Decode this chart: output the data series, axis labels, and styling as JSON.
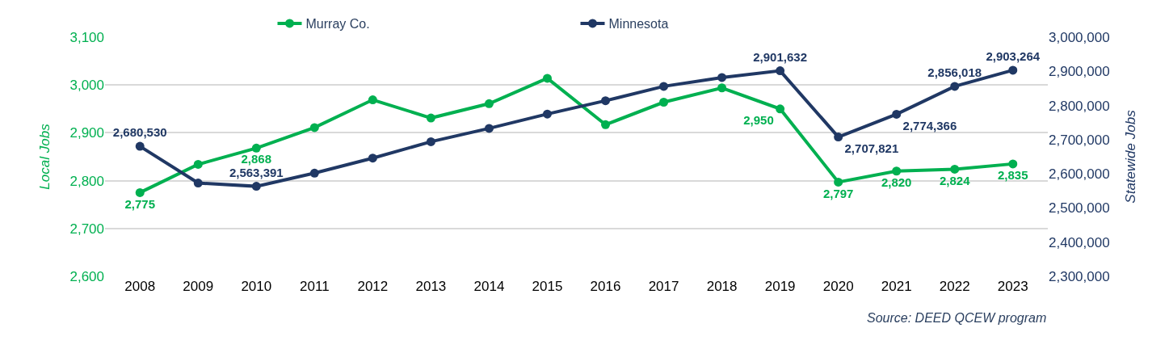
{
  "chart_data": {
    "type": "line",
    "categories": [
      "2008",
      "2009",
      "2010",
      "2011",
      "2012",
      "2013",
      "2014",
      "2015",
      "2016",
      "2017",
      "2018",
      "2019",
      "2020",
      "2021",
      "2022",
      "2023"
    ],
    "series": [
      {
        "name": "Murray Co.",
        "color": "#00b050",
        "values": [
          2775,
          2834,
          2868,
          2911,
          2969,
          2931,
          2961,
          3014,
          2917,
          2964,
          2994,
          2950,
          2797,
          2820,
          2824,
          2835
        ],
        "value_labels": [
          "2,775",
          null,
          "2,868",
          null,
          null,
          null,
          null,
          null,
          null,
          null,
          null,
          "2,950",
          "2,797",
          "2,820",
          "2,824",
          "2,835"
        ]
      },
      {
        "name": "Minnesota",
        "color": "#203864",
        "axis": "y2",
        "values": [
          2680530,
          2573000,
          2563391,
          2602000,
          2646000,
          2694000,
          2733000,
          2775000,
          2814000,
          2856000,
          2882000,
          2901632,
          2707821,
          2774366,
          2856018,
          2903264
        ],
        "value_labels": [
          "2,680,530",
          null,
          "2,563,391",
          null,
          null,
          null,
          null,
          null,
          null,
          null,
          null,
          "2,901,632",
          "2,707,821",
          "2,774,366",
          "2,856,018",
          "2,903,264"
        ]
      }
    ],
    "ylabel": "Local Jobs",
    "y2label": "Statewide Jobs",
    "ylim": [
      2600,
      3100
    ],
    "yticks": [
      {
        "value": 2600,
        "label": "2,600"
      },
      {
        "value": 2700,
        "label": "2,700"
      },
      {
        "value": 2800,
        "label": "2,800"
      },
      {
        "value": 2900,
        "label": "2,900"
      },
      {
        "value": 3000,
        "label": "3,000"
      },
      {
        "value": 3100,
        "label": "3,100"
      }
    ],
    "y2lim": [
      2300000,
      3000000
    ],
    "y2ticks": [
      {
        "value": 2300000,
        "label": "2,300,000"
      },
      {
        "value": 2400000,
        "label": "2,400,000"
      },
      {
        "value": 2500000,
        "label": "2,500,000"
      },
      {
        "value": 2600000,
        "label": "2,600,000"
      },
      {
        "value": 2700000,
        "label": "2,700,000"
      },
      {
        "value": 2800000,
        "label": "2,800,000"
      },
      {
        "value": 2900000,
        "label": "2,900,000"
      },
      {
        "value": 3000000,
        "label": "3,000,000"
      }
    ],
    "grid": "y",
    "legend": "top",
    "marker": "circle",
    "line_style": "solid",
    "annotations": [
      "Source: DEED QCEW program"
    ]
  }
}
